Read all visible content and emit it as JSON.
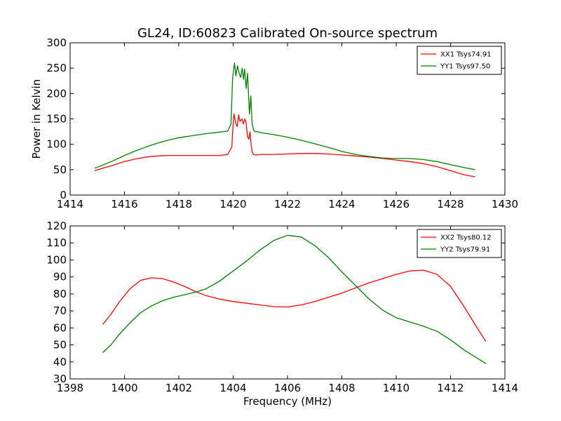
{
  "figure": {
    "title": "GL24, ID:60823 Calibrated On-source spectrum"
  },
  "chart_data": [
    {
      "type": "line",
      "title": "GL24, ID:60823 Calibrated On-source spectrum",
      "xlabel": "",
      "ylabel": "Power in Kelvin",
      "xlim": [
        1414,
        1430
      ],
      "ylim": [
        0,
        300
      ],
      "xticks": [
        1414,
        1416,
        1418,
        1420,
        1422,
        1424,
        1426,
        1428,
        1430
      ],
      "yticks": [
        0,
        50,
        100,
        150,
        200,
        250,
        300
      ],
      "grid": false,
      "legend_position": "top-right",
      "series": [
        {
          "name": "XX1 Tsys74.91",
          "color": "#ff0000",
          "x": [
            1414.9,
            1415.2,
            1415.6,
            1416.0,
            1416.4,
            1416.8,
            1417.2,
            1417.6,
            1418.0,
            1418.5,
            1419.0,
            1419.5,
            1419.8,
            1419.95,
            1420.0,
            1420.03,
            1420.1,
            1420.15,
            1420.2,
            1420.25,
            1420.32,
            1420.38,
            1420.42,
            1420.47,
            1420.53,
            1420.58,
            1420.62,
            1420.66,
            1420.7,
            1420.75,
            1420.85,
            1421.0,
            1421.5,
            1422.0,
            1422.5,
            1423.0,
            1423.5,
            1424.0,
            1424.5,
            1425.0,
            1425.5,
            1426.0,
            1426.5,
            1427.0,
            1427.5,
            1428.0,
            1428.5,
            1428.9
          ],
          "y": [
            48,
            53,
            59,
            66,
            71,
            75,
            77,
            78,
            78,
            78,
            78,
            78,
            80,
            95,
            140,
            160,
            140,
            135,
            158,
            145,
            150,
            140,
            150,
            145,
            115,
            110,
            125,
            100,
            85,
            80,
            79,
            80,
            80,
            81,
            82,
            82,
            81,
            79,
            77,
            75,
            72,
            69,
            66,
            62,
            56,
            48,
            40,
            36
          ]
        },
        {
          "name": "YY1 Tsys97.50",
          "color": "#008000",
          "x": [
            1414.9,
            1415.2,
            1415.6,
            1416.0,
            1416.4,
            1416.8,
            1417.2,
            1417.6,
            1418.0,
            1418.5,
            1419.0,
            1419.5,
            1419.8,
            1419.92,
            1419.98,
            1420.05,
            1420.1,
            1420.16,
            1420.22,
            1420.28,
            1420.33,
            1420.38,
            1420.42,
            1420.48,
            1420.53,
            1420.6,
            1420.65,
            1420.7,
            1420.75,
            1420.8,
            1420.9,
            1421.0,
            1421.5,
            1422.0,
            1422.5,
            1423.0,
            1423.5,
            1424.0,
            1424.5,
            1425.0,
            1425.5,
            1426.0,
            1426.5,
            1427.0,
            1427.5,
            1428.0,
            1428.5,
            1428.9
          ],
          "y": [
            53,
            59,
            68,
            78,
            87,
            95,
            102,
            108,
            113,
            117,
            121,
            124,
            126,
            140,
            230,
            260,
            235,
            255,
            240,
            232,
            250,
            228,
            248,
            210,
            240,
            160,
            195,
            140,
            128,
            125,
            125,
            123,
            119,
            114,
            108,
            101,
            94,
            86,
            80,
            76,
            73,
            72,
            72,
            70,
            66,
            60,
            54,
            50
          ]
        }
      ]
    },
    {
      "type": "line",
      "title": "",
      "xlabel": "Frequency (MHz)",
      "ylabel": "",
      "xlim": [
        1398,
        1414
      ],
      "ylim": [
        30,
        120
      ],
      "xticks": [
        1398,
        1400,
        1402,
        1404,
        1406,
        1408,
        1410,
        1412,
        1414
      ],
      "yticks": [
        30,
        40,
        50,
        60,
        70,
        80,
        90,
        100,
        110,
        120
      ],
      "grid": false,
      "legend_position": "top-right",
      "series": [
        {
          "name": "XX2 Tsys80.12",
          "color": "#ff0000",
          "x": [
            1399.2,
            1399.5,
            1399.8,
            1400.2,
            1400.6,
            1401.0,
            1401.4,
            1401.8,
            1402.2,
            1402.6,
            1403.0,
            1403.5,
            1404.0,
            1404.5,
            1405.0,
            1405.5,
            1406.0,
            1406.5,
            1407.0,
            1407.5,
            1408.0,
            1408.5,
            1409.0,
            1409.5,
            1410.0,
            1410.5,
            1411.0,
            1411.5,
            1412.0,
            1412.5,
            1412.9,
            1413.3
          ],
          "y": [
            62,
            68,
            75,
            83,
            88,
            89.5,
            89,
            87,
            84.5,
            81.5,
            79,
            77,
            75.5,
            74.5,
            73.5,
            72.5,
            72.3,
            73.5,
            75.5,
            78,
            80.5,
            83.5,
            86.5,
            89,
            91.5,
            93.5,
            94,
            91.5,
            84.5,
            72.5,
            62,
            52
          ]
        },
        {
          "name": "YY2 Tsys79.91",
          "color": "#008000",
          "x": [
            1399.2,
            1399.5,
            1399.8,
            1400.2,
            1400.6,
            1401.0,
            1401.4,
            1401.8,
            1402.2,
            1402.6,
            1403.0,
            1403.5,
            1404.0,
            1404.5,
            1405.0,
            1405.5,
            1406.0,
            1406.5,
            1407.0,
            1407.5,
            1408.0,
            1408.5,
            1409.0,
            1409.5,
            1410.0,
            1410.5,
            1411.0,
            1411.5,
            1412.0,
            1412.5,
            1412.9,
            1413.3
          ],
          "y": [
            45.5,
            50,
            56,
            63,
            69,
            73,
            76,
            78,
            79.5,
            81,
            83,
            87.5,
            93.5,
            99.5,
            106,
            111.5,
            114.5,
            113.5,
            108.5,
            101.5,
            93,
            85,
            77,
            70.5,
            66,
            63.5,
            61,
            58,
            53,
            47,
            43,
            39
          ]
        }
      ]
    }
  ]
}
